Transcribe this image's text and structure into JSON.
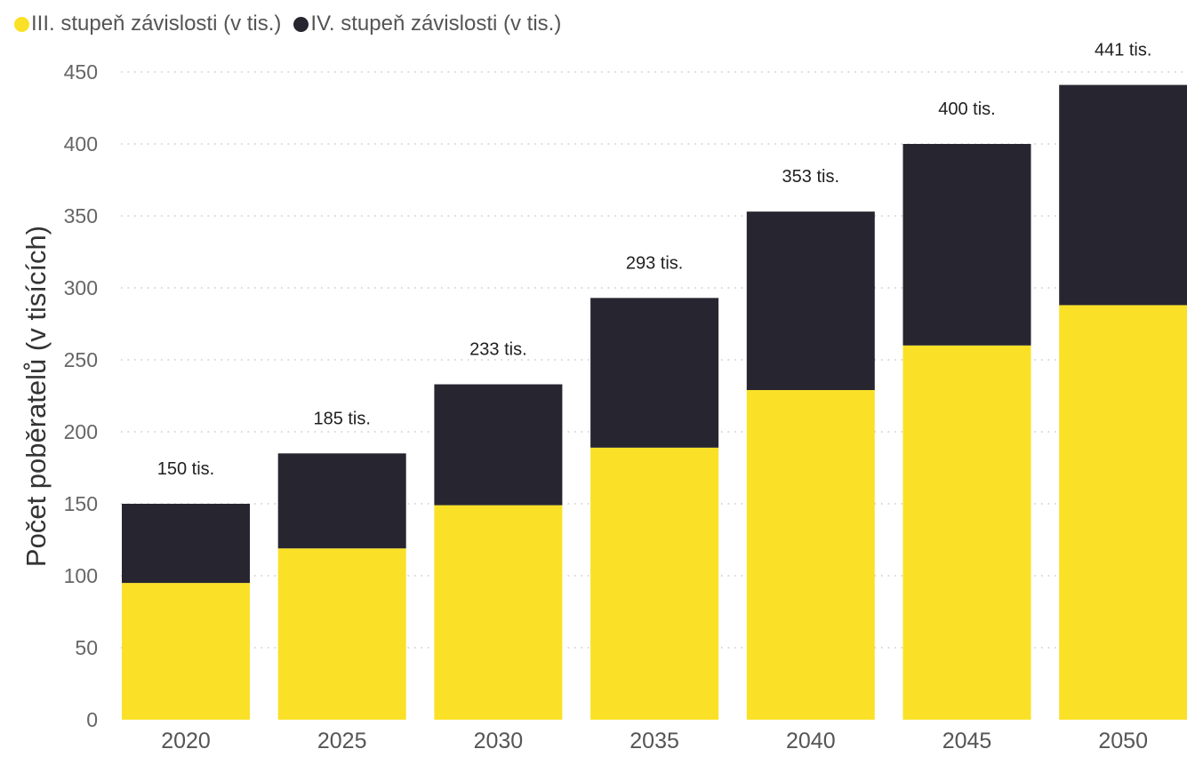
{
  "legend": [
    {
      "label": "III. stupeň závislosti (v tis.)",
      "color": "#FAE127"
    },
    {
      "label": "IV. stupeň závislosti (v tis.)",
      "color": "#272630"
    }
  ],
  "chart_data": {
    "type": "bar",
    "stacked": true,
    "categories": [
      "2020",
      "2025",
      "2030",
      "2035",
      "2040",
      "2045",
      "2050"
    ],
    "series": [
      {
        "name": "III. stupeň závislosti (v tis.)",
        "color": "#FAE127",
        "values": [
          95,
          119,
          149,
          189,
          229,
          260,
          288
        ]
      },
      {
        "name": "IV. stupeň závislosti (v tis.)",
        "color": "#272630",
        "values": [
          55,
          66,
          84,
          104,
          124,
          140,
          153
        ]
      }
    ],
    "totals": [
      150,
      185,
      233,
      293,
      353,
      400,
      441
    ],
    "total_labels": [
      "150 tis.",
      "185 tis.",
      "233 tis.",
      "293 tis.",
      "353 tis.",
      "400 tis.",
      "441 tis."
    ],
    "ylabel": "Počet poběratelů (v tisících)",
    "xlabel": "",
    "ylim": [
      0,
      450
    ],
    "yticks": [
      0,
      50,
      100,
      150,
      200,
      250,
      300,
      350,
      400,
      450
    ],
    "grid": true,
    "legend_position": "top-left"
  }
}
